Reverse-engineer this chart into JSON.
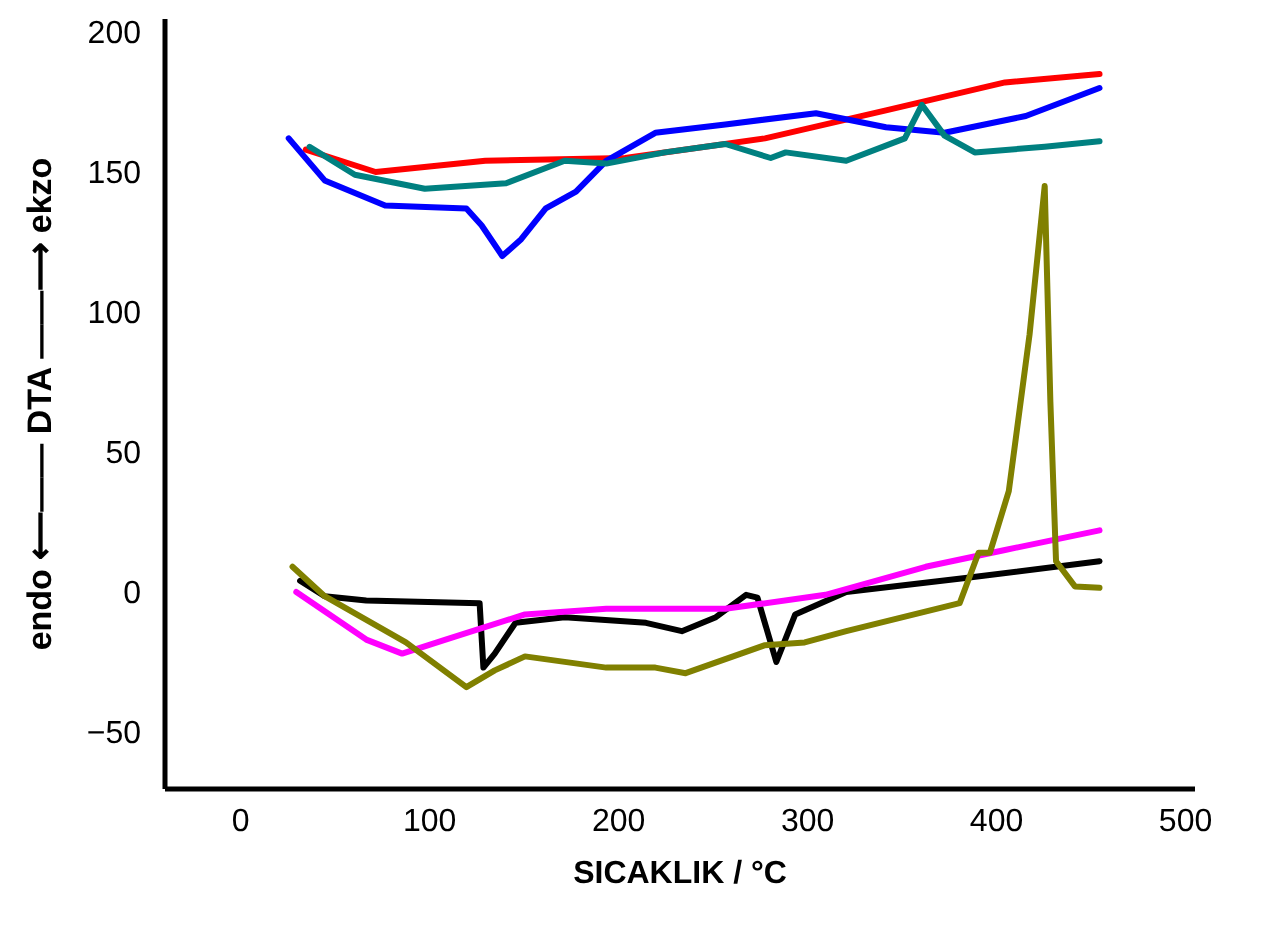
{
  "chart_data": {
    "type": "line",
    "xlabel": "SICAKLIK / °C",
    "ylabel": "endo ⟵—— DTA ——⟶ ekzo",
    "xlim": [
      -40,
      505
    ],
    "ylim": [
      -70,
      205
    ],
    "xticks": [
      0,
      100,
      200,
      300,
      400,
      500
    ],
    "yticks": [
      -50,
      0,
      50,
      100,
      150,
      200
    ],
    "grid": false,
    "legend": false,
    "marker": "none",
    "line_style": "solid",
    "series": [
      {
        "color": "#ff0000",
        "x": [
          35,
          72,
          130,
          204,
          278,
          342,
          405,
          455
        ],
        "values": [
          158,
          150,
          154,
          155,
          162,
          172,
          182,
          185
        ]
      },
      {
        "color": "#0000ff",
        "x": [
          26,
          45,
          77,
          120,
          128,
          139,
          149,
          162,
          178,
          194,
          220,
          257,
          305,
          342,
          373,
          416,
          455
        ],
        "values": [
          162,
          147,
          138,
          137,
          131,
          120,
          126,
          137,
          143,
          154,
          164,
          167,
          171,
          166,
          164,
          170,
          180
        ]
      },
      {
        "color": "#008080",
        "x": [
          37,
          61,
          98,
          141,
          172,
          194,
          225,
          257,
          281,
          289,
          321,
          352,
          361,
          373,
          389,
          426,
          455
        ],
        "values": [
          159,
          149,
          144,
          146,
          154,
          153,
          157,
          160,
          155,
          157,
          154,
          162,
          174,
          163,
          157,
          159,
          161
        ]
      },
      {
        "color": "#000000",
        "x": [
          32,
          45,
          67,
          127,
          129,
          135,
          146,
          172,
          215,
          234,
          252,
          268,
          274,
          284,
          294,
          321,
          384,
          455
        ],
        "values": [
          4,
          -1.5,
          -3,
          -4,
          -27,
          -22,
          -11,
          -9,
          -11,
          -14,
          -9,
          -1,
          -2,
          -25,
          -8,
          0,
          5,
          11
        ]
      },
      {
        "color": "#ff00ff",
        "x": [
          30,
          67,
          86,
          109,
          151,
          194,
          257,
          310,
          363,
          405,
          455
        ],
        "values": [
          0,
          -17,
          -22,
          -17,
          -8,
          -6,
          -6,
          -1,
          9,
          15,
          22
        ]
      },
      {
        "color": "#808000",
        "x": [
          28,
          45,
          88,
          120,
          135,
          151,
          194,
          220,
          236,
          278,
          299,
          321,
          381,
          391,
          397,
          407,
          418,
          426,
          429,
          432,
          442,
          455
        ],
        "values": [
          9,
          -1.5,
          -18,
          -34,
          -28,
          -23,
          -27,
          -27,
          -29,
          -19,
          -18,
          -14,
          -4,
          14,
          14,
          36,
          92,
          145,
          68,
          11,
          2,
          1.5
        ]
      }
    ]
  }
}
